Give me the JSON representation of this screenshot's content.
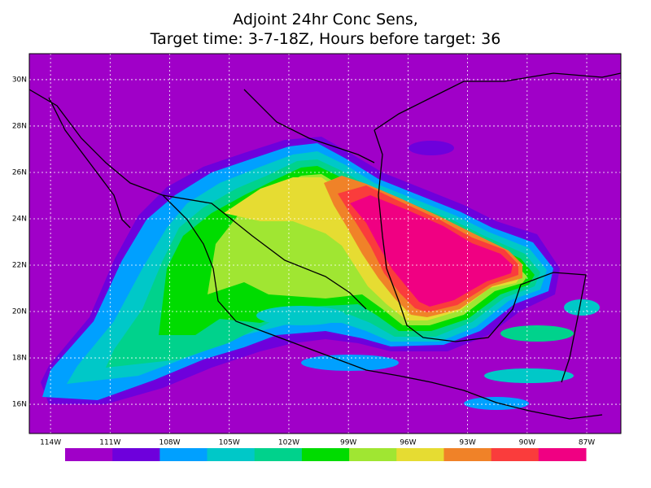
{
  "title": {
    "line1": "Adjoint 24hr Conc Sens,",
    "line2": "Target time: 3-7-18Z, Hours before target: 36"
  },
  "map": {
    "lon_range": [
      -115.07,
      -85.28
    ],
    "lat_range": [
      14.74,
      31.12
    ],
    "background": "#a000c8",
    "lat_ticks": [
      {
        "value": 30,
        "label": "30N"
      },
      {
        "value": 28,
        "label": "28N"
      },
      {
        "value": 26,
        "label": "26N"
      },
      {
        "value": 24,
        "label": "24N"
      },
      {
        "value": 22,
        "label": "22N"
      },
      {
        "value": 20,
        "label": "20N"
      },
      {
        "value": 18,
        "label": "18N"
      },
      {
        "value": 16,
        "label": "16N"
      }
    ],
    "lon_ticks": [
      {
        "value": -114,
        "label": "114W"
      },
      {
        "value": -111,
        "label": "111W"
      },
      {
        "value": -108,
        "label": "108W"
      },
      {
        "value": -105,
        "label": "105W"
      },
      {
        "value": -102,
        "label": "102W"
      },
      {
        "value": -99,
        "label": "99W"
      },
      {
        "value": -96,
        "label": "96W"
      },
      {
        "value": -93,
        "label": "93W"
      },
      {
        "value": -90,
        "label": "90W"
      },
      {
        "value": -87,
        "label": "87W"
      }
    ]
  },
  "colorbar": {
    "colors": [
      "#a000c8",
      "#6e00dc",
      "#00a0ff",
      "#00c8c8",
      "#00d28c",
      "#00dc00",
      "#a0e632",
      "#e6dc32",
      "#f08228",
      "#fa3c3c",
      "#f00082"
    ]
  }
}
